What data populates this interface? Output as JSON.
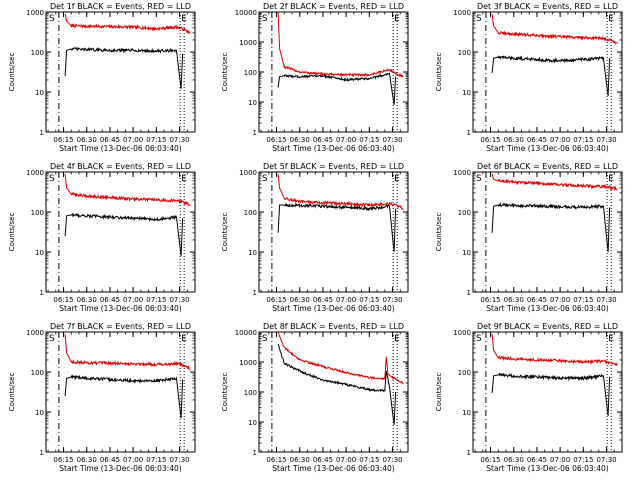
{
  "figure": {
    "xlabel": "Start Time (13-Dec-06 06:03:40)",
    "ylabel": "Counts/sec",
    "marker_S": "S",
    "marker_E": "E"
  },
  "chart_data": [
    {
      "type": "line",
      "title": "Det 1f BLACK = Events, RED = LLD",
      "yscale": "log",
      "ylim": [
        1,
        1000
      ],
      "yticks": [
        "1",
        "10",
        "100",
        "1000"
      ],
      "xticks": [
        "06:15",
        "06:30",
        "06:45",
        "07:00",
        "07:15",
        "07:30"
      ],
      "xlim": [
        "06:03:40",
        "07:40"
      ],
      "series": [
        {
          "name": "LLD",
          "color": "#dd0000",
          "x": [
            "06:16",
            "06:17",
            "06:20",
            "06:30",
            "06:45",
            "07:00",
            "07:15",
            "07:28",
            "07:32",
            "07:37"
          ],
          "y": [
            900,
            600,
            450,
            440,
            430,
            420,
            380,
            420,
            380,
            300
          ]
        },
        {
          "name": "Events",
          "color": "#000000",
          "x": [
            "06:16",
            "06:17",
            "06:20",
            "06:30",
            "06:45",
            "07:00",
            "07:15",
            "07:28",
            "07:31",
            "07:32"
          ],
          "y": [
            25,
            110,
            120,
            115,
            110,
            110,
            105,
            110,
            12,
            90
          ]
        }
      ]
    },
    {
      "type": "line",
      "title": "Det 2f BLACK = Events, RED = LLD",
      "yscale": "log",
      "ylim": [
        1,
        10000
      ],
      "yticks": [
        "1",
        "10",
        "100",
        "1000",
        "10000"
      ],
      "xticks": [
        "06:15",
        "06:30",
        "06:45",
        "07:00",
        "07:15",
        "07:30"
      ],
      "xlim": [
        "06:03:40",
        "07:40"
      ],
      "series": [
        {
          "name": "LLD",
          "color": "#dd0000",
          "x": [
            "06:16",
            "06:17",
            "06:20",
            "06:30",
            "06:45",
            "07:00",
            "07:15",
            "07:28",
            "07:32",
            "07:37"
          ],
          "y": [
            10000,
            600,
            150,
            100,
            85,
            80,
            80,
            120,
            90,
            70
          ]
        },
        {
          "name": "Events",
          "color": "#000000",
          "x": [
            "06:16",
            "06:17",
            "06:20",
            "06:30",
            "06:45",
            "07:00",
            "07:15",
            "07:28",
            "07:31",
            "07:32"
          ],
          "y": [
            30,
            70,
            75,
            70,
            75,
            55,
            60,
            90,
            8,
            70
          ]
        }
      ]
    },
    {
      "type": "line",
      "title": "Det 3f BLACK = Events, RED = LLD",
      "yscale": "log",
      "ylim": [
        1,
        1000
      ],
      "yticks": [
        "1",
        "10",
        "100",
        "1000"
      ],
      "xticks": [
        "06:15",
        "06:30",
        "06:45",
        "07:00",
        "07:15",
        "07:30"
      ],
      "xlim": [
        "06:03:40",
        "07:40"
      ],
      "series": [
        {
          "name": "LLD",
          "color": "#dd0000",
          "x": [
            "06:16",
            "06:17",
            "06:20",
            "06:30",
            "06:45",
            "07:00",
            "07:15",
            "07:28",
            "07:32",
            "07:37"
          ],
          "y": [
            900,
            450,
            300,
            280,
            260,
            240,
            230,
            220,
            200,
            170
          ]
        },
        {
          "name": "Events",
          "color": "#000000",
          "x": [
            "06:16",
            "06:17",
            "06:20",
            "06:30",
            "06:45",
            "07:00",
            "07:15",
            "07:28",
            "07:31",
            "07:32"
          ],
          "y": [
            30,
            70,
            75,
            70,
            65,
            60,
            65,
            70,
            8,
            70
          ]
        }
      ]
    },
    {
      "type": "line",
      "title": "Det 4f BLACK = Events, RED = LLD",
      "yscale": "log",
      "ylim": [
        1,
        1000
      ],
      "yticks": [
        "1",
        "10",
        "100",
        "1000"
      ],
      "xticks": [
        "06:15",
        "06:30",
        "06:45",
        "07:00",
        "07:15",
        "07:30"
      ],
      "xlim": [
        "06:03:40",
        "07:40"
      ],
      "series": [
        {
          "name": "LLD",
          "color": "#dd0000",
          "x": [
            "06:16",
            "06:17",
            "06:20",
            "06:30",
            "06:45",
            "07:00",
            "07:15",
            "07:28",
            "07:32",
            "07:37"
          ],
          "y": [
            900,
            400,
            280,
            250,
            230,
            210,
            200,
            190,
            180,
            150
          ]
        },
        {
          "name": "Events",
          "color": "#000000",
          "x": [
            "06:16",
            "06:17",
            "06:20",
            "06:30",
            "06:45",
            "07:00",
            "07:15",
            "07:28",
            "07:31",
            "07:32"
          ],
          "y": [
            25,
            80,
            85,
            80,
            75,
            70,
            65,
            75,
            8,
            70
          ]
        }
      ]
    },
    {
      "type": "line",
      "title": "Det 5f BLACK = Events, RED = LLD",
      "yscale": "log",
      "ylim": [
        1,
        1000
      ],
      "yticks": [
        "1",
        "10",
        "100",
        "1000"
      ],
      "xticks": [
        "06:15",
        "06:30",
        "06:45",
        "07:00",
        "07:15",
        "07:30"
      ],
      "xlim": [
        "06:03:40",
        "07:40"
      ],
      "series": [
        {
          "name": "LLD",
          "color": "#dd0000",
          "x": [
            "06:16",
            "06:17",
            "06:20",
            "06:30",
            "06:45",
            "07:00",
            "07:15",
            "07:28",
            "07:32",
            "07:37"
          ],
          "y": [
            900,
            400,
            220,
            180,
            170,
            160,
            150,
            160,
            150,
            120
          ]
        },
        {
          "name": "Events",
          "color": "#000000",
          "x": [
            "06:16",
            "06:17",
            "06:20",
            "06:30",
            "06:45",
            "07:00",
            "07:15",
            "07:28",
            "07:31",
            "07:32"
          ],
          "y": [
            30,
            150,
            150,
            145,
            140,
            130,
            120,
            140,
            10,
            120
          ]
        }
      ]
    },
    {
      "type": "line",
      "title": "Det 6f BLACK = Events, RED = LLD",
      "yscale": "log",
      "ylim": [
        1,
        1000
      ],
      "yticks": [
        "1",
        "10",
        "100",
        "1000"
      ],
      "xticks": [
        "06:15",
        "06:30",
        "06:45",
        "07:00",
        "07:15",
        "07:30"
      ],
      "xlim": [
        "06:03:40",
        "07:40"
      ],
      "series": [
        {
          "name": "LLD",
          "color": "#dd0000",
          "x": [
            "06:16",
            "06:17",
            "06:20",
            "06:30",
            "06:45",
            "07:00",
            "07:15",
            "07:28",
            "07:32",
            "07:37"
          ],
          "y": [
            900,
            650,
            600,
            560,
            520,
            480,
            450,
            430,
            420,
            380
          ]
        },
        {
          "name": "Events",
          "color": "#000000",
          "x": [
            "06:16",
            "06:17",
            "06:20",
            "06:30",
            "06:45",
            "07:00",
            "07:15",
            "07:28",
            "07:31",
            "07:32"
          ],
          "y": [
            30,
            140,
            150,
            145,
            140,
            135,
            130,
            140,
            10,
            130
          ]
        }
      ]
    },
    {
      "type": "line",
      "title": "Det 7f BLACK = Events, RED = LLD",
      "yscale": "log",
      "ylim": [
        1,
        1000
      ],
      "yticks": [
        "1",
        "10",
        "100",
        "1000"
      ],
      "xticks": [
        "06:15",
        "06:30",
        "06:45",
        "07:00",
        "07:15",
        "07:30"
      ],
      "xlim": [
        "06:03:40",
        "07:40"
      ],
      "series": [
        {
          "name": "LLD",
          "color": "#dd0000",
          "x": [
            "06:16",
            "06:17",
            "06:20",
            "06:30",
            "06:45",
            "07:00",
            "07:15",
            "07:28",
            "07:32",
            "07:37"
          ],
          "y": [
            900,
            300,
            180,
            170,
            165,
            160,
            155,
            160,
            150,
            120
          ]
        },
        {
          "name": "Events",
          "color": "#000000",
          "x": [
            "06:16",
            "06:17",
            "06:20",
            "06:30",
            "06:45",
            "07:00",
            "07:15",
            "07:28",
            "07:31",
            "07:32"
          ],
          "y": [
            25,
            70,
            75,
            70,
            65,
            60,
            60,
            70,
            7,
            65
          ]
        }
      ]
    },
    {
      "type": "line",
      "title": "Det 8f BLACK = Events, RED = LLD",
      "yscale": "log",
      "ylim": [
        1,
        10000
      ],
      "yticks": [
        "1",
        "10",
        "100",
        "1000",
        "10000"
      ],
      "xticks": [
        "06:15",
        "06:30",
        "06:45",
        "07:00",
        "07:15",
        "07:30"
      ],
      "xlim": [
        "06:03:40",
        "07:40"
      ],
      "series": [
        {
          "name": "LLD",
          "color": "#dd0000",
          "x": [
            "06:16",
            "06:20",
            "06:30",
            "06:45",
            "07:00",
            "07:15",
            "07:25",
            "07:26",
            "07:27",
            "07:30",
            "07:37"
          ],
          "y": [
            10000,
            3000,
            1200,
            700,
            450,
            300,
            280,
            1500,
            400,
            300,
            200
          ]
        },
        {
          "name": "Events",
          "color": "#000000",
          "x": [
            "06:16",
            "06:20",
            "06:30",
            "06:45",
            "07:00",
            "07:15",
            "07:25",
            "07:26",
            "07:28",
            "07:31",
            "07:32"
          ],
          "y": [
            4000,
            900,
            500,
            250,
            180,
            120,
            110,
            500,
            150,
            8,
            100
          ]
        }
      ]
    },
    {
      "type": "line",
      "title": "Det 9f BLACK = Events, RED = LLD",
      "yscale": "log",
      "ylim": [
        1,
        1000
      ],
      "yticks": [
        "1",
        "10",
        "100",
        "1000"
      ],
      "xticks": [
        "06:15",
        "06:30",
        "06:45",
        "07:00",
        "07:15",
        "07:30"
      ],
      "xlim": [
        "06:03:40",
        "07:40"
      ],
      "series": [
        {
          "name": "LLD",
          "color": "#dd0000",
          "x": [
            "06:16",
            "06:17",
            "06:20",
            "06:30",
            "06:45",
            "07:00",
            "07:15",
            "07:28",
            "07:32",
            "07:37"
          ],
          "y": [
            900,
            350,
            230,
            210,
            200,
            190,
            180,
            190,
            170,
            150
          ]
        },
        {
          "name": "Events",
          "color": "#000000",
          "x": [
            "06:16",
            "06:17",
            "06:20",
            "06:30",
            "06:45",
            "07:00",
            "07:15",
            "07:28",
            "07:31",
            "07:32"
          ],
          "y": [
            30,
            80,
            85,
            80,
            75,
            70,
            70,
            80,
            8,
            75
          ]
        }
      ]
    }
  ]
}
